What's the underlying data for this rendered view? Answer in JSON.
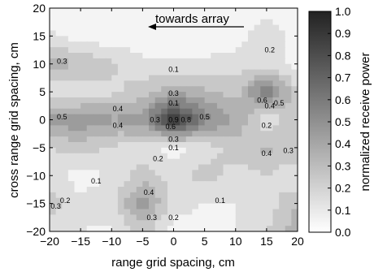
{
  "chart_data": {
    "type": "heatmap",
    "subtype": "filled-contour",
    "title": "",
    "xlabel": "range grid spacing, cm",
    "ylabel": "cross range grid spacing, cm",
    "xlim": [
      -20,
      20
    ],
    "ylim": [
      -20,
      20
    ],
    "x_ticks": [
      "−20",
      "−15",
      "−10",
      "−5",
      "0",
      "5",
      "10",
      "15",
      "20"
    ],
    "y_ticks": [
      "20",
      "15",
      "10",
      "5",
      "0",
      "−5",
      "−10",
      "−15",
      "−20"
    ],
    "colorbar": {
      "label": "normalized receive power",
      "range": [
        0,
        1
      ],
      "ticks": [
        "1.0",
        "0.9",
        "0.8",
        "0.7",
        "0.6",
        "0.5",
        "0.4",
        "0.3",
        "0.2",
        "0.1",
        "0.0"
      ],
      "colormap": "gray (white = 0, dark = 1)"
    },
    "annotation": {
      "text": "towards array",
      "arrow_direction": "left",
      "x": -4,
      "y": 16
    },
    "grid_x": [
      -20,
      -15,
      -10,
      -5,
      0,
      5,
      10,
      15,
      20
    ],
    "grid_y": [
      -20,
      -15,
      -10,
      -5,
      0,
      5,
      10,
      15,
      20
    ],
    "z_top_to_bottom": [
      [
        0.02,
        0.02,
        0.05,
        0.05,
        0.05,
        0.05,
        0.04,
        0.04,
        0.05
      ],
      [
        0.12,
        0.05,
        0.03,
        0.03,
        0.03,
        0.04,
        0.05,
        0.18,
        0.05
      ],
      [
        0.35,
        0.3,
        0.22,
        0.12,
        0.12,
        0.12,
        0.15,
        0.15,
        0.05
      ],
      [
        0.1,
        0.12,
        0.18,
        0.25,
        0.38,
        0.32,
        0.25,
        0.62,
        0.2
      ],
      [
        0.45,
        0.48,
        0.42,
        0.45,
        0.95,
        0.55,
        0.4,
        0.1,
        0.3
      ],
      [
        0.2,
        0.25,
        0.18,
        0.15,
        0.05,
        0.15,
        0.25,
        0.32,
        0.3
      ],
      [
        0.15,
        0.05,
        0.12,
        0.25,
        0.15,
        0.25,
        0.15,
        0.2,
        0.1
      ],
      [
        0.25,
        0.12,
        0.15,
        0.48,
        0.15,
        0.1,
        0.1,
        0.15,
        0.3
      ],
      [
        0.15,
        0.1,
        0.08,
        0.25,
        0.05,
        0.05,
        0.1,
        0.2,
        0.35
      ]
    ],
    "contour_labels": [
      {
        "text": "0.3",
        "x": -18,
        "y": 10.5
      },
      {
        "text": "0.1",
        "x": 0,
        "y": 9
      },
      {
        "text": "0.2",
        "x": 15.5,
        "y": 12.5
      },
      {
        "text": "0.3",
        "x": 0,
        "y": 4.7
      },
      {
        "text": "0.5",
        "x": -18,
        "y": 0.5
      },
      {
        "text": "0.4",
        "x": -9,
        "y": 2
      },
      {
        "text": "0.4",
        "x": -9,
        "y": -1
      },
      {
        "text": "0.5",
        "x": 5,
        "y": 0.5
      },
      {
        "text": "0.1",
        "x": 0,
        "y": 3
      },
      {
        "text": "0.9",
        "x": 0,
        "y": 0
      },
      {
        "text": "0.8",
        "x": 2,
        "y": 0
      },
      {
        "text": "0.6",
        "x": -0.5,
        "y": -1.2
      },
      {
        "text": "0.3",
        "x": -3,
        "y": 0
      },
      {
        "text": "0.3",
        "x": 0,
        "y": -3.5
      },
      {
        "text": "0.1",
        "x": 0,
        "y": -5
      },
      {
        "text": "0.2",
        "x": -2.5,
        "y": -7
      },
      {
        "text": "0.6",
        "x": 14.3,
        "y": 3.5
      },
      {
        "text": "0.4",
        "x": 15.5,
        "y": 2.5
      },
      {
        "text": "0.5",
        "x": 17,
        "y": 3
      },
      {
        "text": "0.2",
        "x": 15,
        "y": -1
      },
      {
        "text": "0.4",
        "x": 15,
        "y": -6
      },
      {
        "text": "0.3",
        "x": 18.5,
        "y": -5.5
      },
      {
        "text": "0.1",
        "x": -12.5,
        "y": -11
      },
      {
        "text": "0.4",
        "x": -4,
        "y": -13
      },
      {
        "text": "0.3",
        "x": -3.5,
        "y": -17.5
      },
      {
        "text": "0.2",
        "x": 0,
        "y": -17.5
      },
      {
        "text": "0.1",
        "x": 7.5,
        "y": -14.5
      },
      {
        "text": "0.2",
        "x": -17.5,
        "y": -14.5
      },
      {
        "text": "0.3",
        "x": -19,
        "y": -15.5
      }
    ]
  }
}
